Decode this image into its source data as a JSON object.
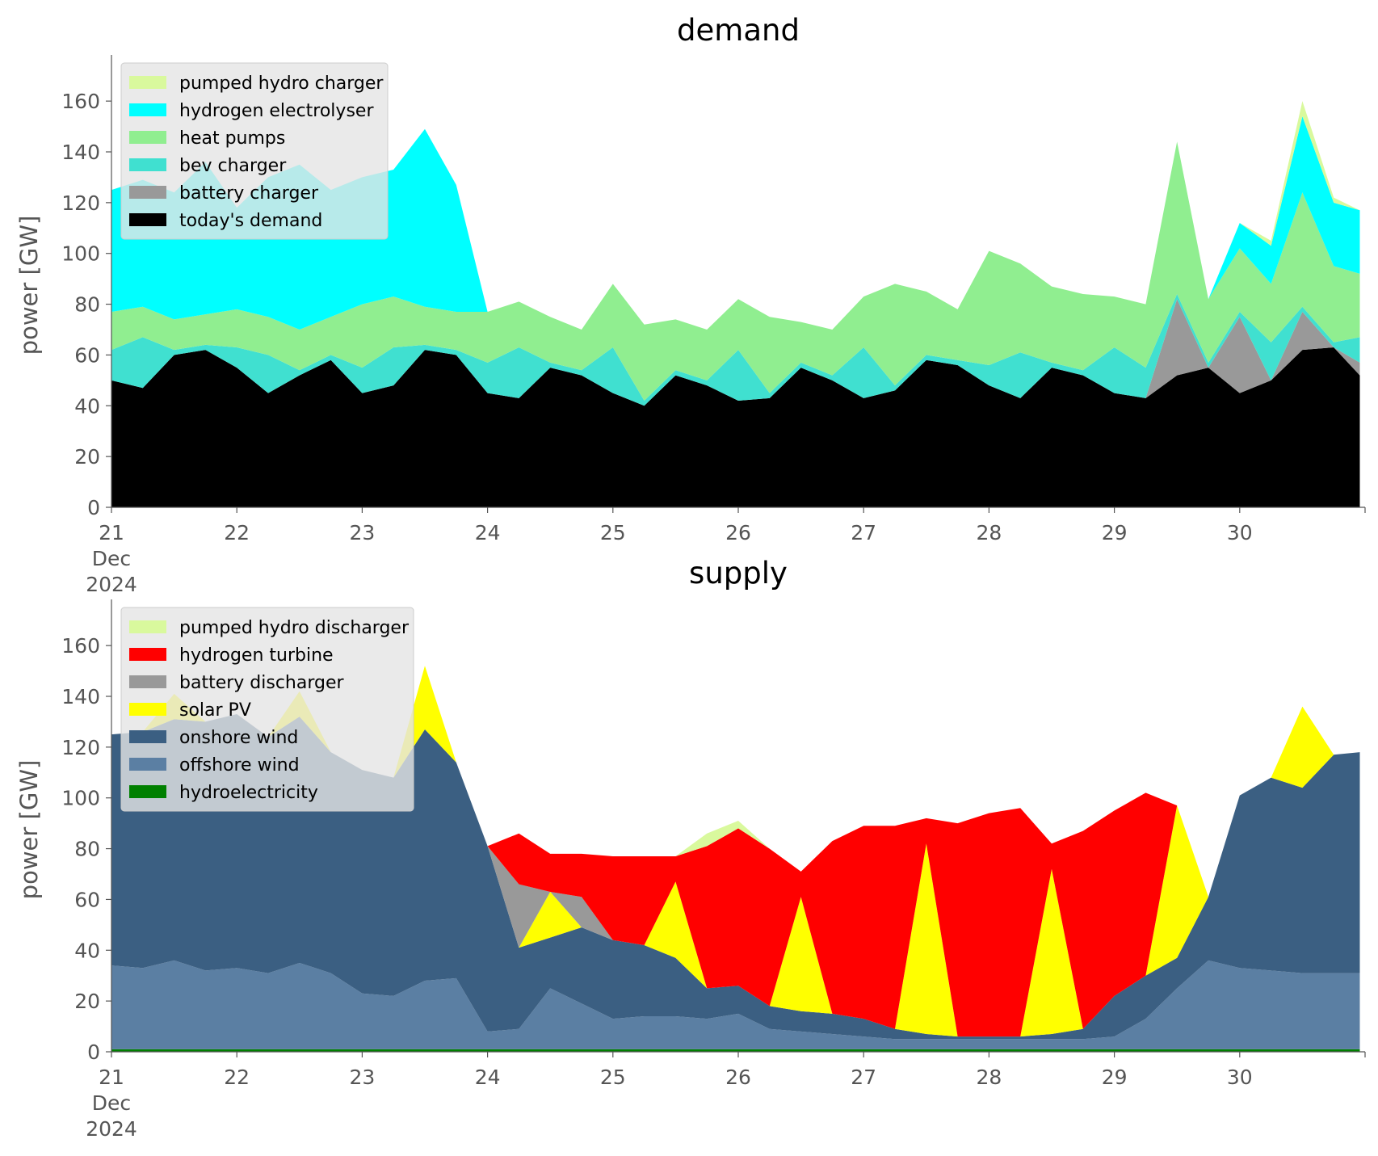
{
  "chart_data": [
    {
      "type": "area",
      "title": "demand",
      "ylabel": "power [GW]",
      "xlabel": "",
      "ylim": [
        0,
        175
      ],
      "x_tick_labels": [
        "21",
        "22",
        "23",
        "24",
        "25",
        "26",
        "27",
        "28",
        "29",
        "30"
      ],
      "x_first_tick_sublabels": [
        "Dec",
        "2024"
      ],
      "y_tick_labels": [
        "0",
        "20",
        "40",
        "60",
        "80",
        "100",
        "120",
        "140",
        "160"
      ],
      "x": [
        "2024-12-21 00:00",
        "2024-12-21 06:00",
        "2024-12-21 12:00",
        "2024-12-21 18:00",
        "2024-12-22 00:00",
        "2024-12-22 06:00",
        "2024-12-22 12:00",
        "2024-12-22 18:00",
        "2024-12-23 00:00",
        "2024-12-23 06:00",
        "2024-12-23 12:00",
        "2024-12-23 18:00",
        "2024-12-24 00:00",
        "2024-12-24 06:00",
        "2024-12-24 12:00",
        "2024-12-24 18:00",
        "2024-12-25 00:00",
        "2024-12-25 06:00",
        "2024-12-25 12:00",
        "2024-12-25 18:00",
        "2024-12-26 00:00",
        "2024-12-26 06:00",
        "2024-12-26 12:00",
        "2024-12-26 18:00",
        "2024-12-27 00:00",
        "2024-12-27 06:00",
        "2024-12-27 12:00",
        "2024-12-27 18:00",
        "2024-12-28 00:00",
        "2024-12-28 06:00",
        "2024-12-28 12:00",
        "2024-12-28 18:00",
        "2024-12-29 00:00",
        "2024-12-29 06:00",
        "2024-12-29 12:00",
        "2024-12-29 18:00",
        "2024-12-30 00:00",
        "2024-12-30 06:00",
        "2024-12-30 12:00",
        "2024-12-30 18:00",
        "2024-12-30 23:00"
      ],
      "legend_position": "upper-left",
      "series": [
        {
          "name": "today's demand",
          "color": "#000000",
          "values": [
            50,
            47,
            60,
            62,
            55,
            45,
            52,
            58,
            45,
            48,
            62,
            60,
            45,
            43,
            55,
            52,
            45,
            40,
            52,
            48,
            42,
            43,
            55,
            50,
            43,
            46,
            58,
            56,
            48,
            43,
            55,
            52,
            45,
            43,
            52,
            55,
            45,
            50,
            62,
            63,
            52
          ]
        },
        {
          "name": "battery charger",
          "color": "#999999",
          "values": [
            0,
            0,
            0,
            0,
            0,
            0,
            0,
            0,
            0,
            0,
            0,
            0,
            0,
            0,
            0,
            0,
            0,
            0,
            0,
            0,
            0,
            0,
            0,
            0,
            0,
            0,
            0,
            0,
            0,
            0,
            0,
            0,
            0,
            0,
            30,
            0,
            30,
            0,
            15,
            0,
            5
          ]
        },
        {
          "name": "bev charger",
          "color": "#40e0d0",
          "values": [
            12,
            20,
            2,
            2,
            8,
            15,
            2,
            2,
            10,
            15,
            2,
            2,
            12,
            20,
            2,
            2,
            18,
            2,
            2,
            2,
            20,
            2,
            2,
            2,
            20,
            2,
            2,
            2,
            8,
            18,
            2,
            2,
            18,
            12,
            2,
            2,
            2,
            15,
            2,
            2,
            10
          ]
        },
        {
          "name": "heat pumps",
          "color": "#90ee90",
          "values": [
            15,
            12,
            12,
            12,
            15,
            15,
            16,
            15,
            25,
            20,
            15,
            15,
            20,
            18,
            18,
            16,
            25,
            30,
            20,
            20,
            20,
            30,
            16,
            18,
            20,
            40,
            25,
            20,
            45,
            35,
            30,
            30,
            20,
            25,
            60,
            25,
            25,
            23,
            45,
            30,
            25
          ]
        },
        {
          "name": "hydrogen electrolyser",
          "color": "#00ffff",
          "values": [
            48,
            50,
            50,
            60,
            40,
            55,
            65,
            50,
            50,
            50,
            70,
            50,
            0,
            0,
            0,
            0,
            0,
            0,
            0,
            0,
            0,
            0,
            0,
            0,
            0,
            0,
            0,
            0,
            0,
            0,
            0,
            0,
            0,
            0,
            0,
            0,
            10,
            15,
            30,
            25,
            25
          ]
        },
        {
          "name": "pumped hydro charger",
          "color": "#d9f99d",
          "values": [
            0,
            0,
            0,
            0,
            0,
            0,
            0,
            0,
            0,
            0,
            0,
            0,
            0,
            0,
            0,
            0,
            0,
            0,
            0,
            0,
            0,
            0,
            0,
            0,
            0,
            0,
            0,
            0,
            0,
            0,
            0,
            0,
            0,
            0,
            0,
            0,
            0,
            2,
            6,
            2,
            0
          ]
        }
      ]
    },
    {
      "type": "area",
      "title": "supply",
      "ylabel": "power [GW]",
      "xlabel": "",
      "ylim": [
        0,
        175
      ],
      "x_tick_labels": [
        "21",
        "22",
        "23",
        "24",
        "25",
        "26",
        "27",
        "28",
        "29",
        "30"
      ],
      "x_first_tick_sublabels": [
        "Dec",
        "2024"
      ],
      "y_tick_labels": [
        "0",
        "20",
        "40",
        "60",
        "80",
        "100",
        "120",
        "140",
        "160"
      ],
      "x": [
        "2024-12-21 00:00",
        "2024-12-21 06:00",
        "2024-12-21 12:00",
        "2024-12-21 18:00",
        "2024-12-22 00:00",
        "2024-12-22 06:00",
        "2024-12-22 12:00",
        "2024-12-22 18:00",
        "2024-12-23 00:00",
        "2024-12-23 06:00",
        "2024-12-23 12:00",
        "2024-12-23 18:00",
        "2024-12-24 00:00",
        "2024-12-24 06:00",
        "2024-12-24 12:00",
        "2024-12-24 18:00",
        "2024-12-25 00:00",
        "2024-12-25 06:00",
        "2024-12-25 12:00",
        "2024-12-25 18:00",
        "2024-12-26 00:00",
        "2024-12-26 06:00",
        "2024-12-26 12:00",
        "2024-12-26 18:00",
        "2024-12-27 00:00",
        "2024-12-27 06:00",
        "2024-12-27 12:00",
        "2024-12-27 18:00",
        "2024-12-28 00:00",
        "2024-12-28 06:00",
        "2024-12-28 12:00",
        "2024-12-28 18:00",
        "2024-12-29 00:00",
        "2024-12-29 06:00",
        "2024-12-29 12:00",
        "2024-12-29 18:00",
        "2024-12-30 00:00",
        "2024-12-30 06:00",
        "2024-12-30 12:00",
        "2024-12-30 18:00",
        "2024-12-30 23:00"
      ],
      "legend_position": "upper-left",
      "series": [
        {
          "name": "hydroelectricity",
          "color": "#008000",
          "values": [
            1,
            1,
            1,
            1,
            1,
            1,
            1,
            1,
            1,
            1,
            1,
            1,
            1,
            1,
            1,
            1,
            1,
            1,
            1,
            1,
            1,
            1,
            1,
            1,
            1,
            1,
            1,
            1,
            1,
            1,
            1,
            1,
            1,
            1,
            1,
            1,
            1,
            1,
            1,
            1,
            1
          ]
        },
        {
          "name": "offshore wind",
          "color": "#5b7fa3",
          "values": [
            33,
            32,
            35,
            31,
            32,
            30,
            34,
            30,
            22,
            21,
            27,
            28,
            7,
            8,
            24,
            18,
            12,
            13,
            13,
            12,
            14,
            8,
            7,
            6,
            5,
            4,
            4,
            4,
            4,
            4,
            4,
            4,
            5,
            12,
            24,
            35,
            32,
            31,
            30,
            30,
            30
          ]
        },
        {
          "name": "onshore wind",
          "color": "#3b5f82",
          "values": [
            91,
            93,
            95,
            98,
            100,
            93,
            97,
            87,
            88,
            86,
            99,
            85,
            73,
            32,
            20,
            30,
            31,
            28,
            23,
            12,
            11,
            9,
            8,
            8,
            7,
            4,
            2,
            1,
            1,
            1,
            2,
            4,
            16,
            17,
            12,
            25,
            68,
            76,
            73,
            86,
            87
          ]
        },
        {
          "name": "solar PV",
          "color": "#ffff00",
          "values": [
            0,
            0,
            10,
            0,
            0,
            0,
            10,
            0,
            0,
            0,
            25,
            0,
            0,
            0,
            18,
            0,
            0,
            0,
            30,
            0,
            0,
            0,
            45,
            0,
            0,
            0,
            75,
            0,
            0,
            0,
            65,
            0,
            0,
            0,
            60,
            0,
            0,
            0,
            32,
            0,
            0
          ]
        },
        {
          "name": "battery discharger",
          "color": "#999999",
          "values": [
            0,
            0,
            0,
            0,
            0,
            0,
            0,
            0,
            0,
            0,
            0,
            0,
            0,
            25,
            0,
            12,
            0,
            0,
            0,
            0,
            0,
            0,
            0,
            0,
            0,
            0,
            0,
            0,
            0,
            0,
            0,
            0,
            0,
            0,
            0,
            0,
            0,
            0,
            0,
            0,
            0
          ]
        },
        {
          "name": "hydrogen turbine",
          "color": "#ff0000",
          "values": [
            0,
            0,
            0,
            0,
            0,
            0,
            0,
            0,
            0,
            0,
            0,
            0,
            0,
            20,
            15,
            17,
            33,
            35,
            10,
            56,
            62,
            62,
            10,
            68,
            76,
            80,
            10,
            84,
            88,
            90,
            10,
            78,
            73,
            72,
            0,
            0,
            0,
            0,
            0,
            0,
            0
          ]
        },
        {
          "name": "pumped hydro discharger",
          "color": "#d9f99d",
          "values": [
            0,
            0,
            0,
            0,
            0,
            0,
            0,
            0,
            0,
            0,
            0,
            0,
            0,
            0,
            0,
            0,
            0,
            0,
            0,
            5,
            3,
            0,
            0,
            0,
            0,
            0,
            0,
            0,
            0,
            0,
            0,
            0,
            0,
            0,
            0,
            0,
            0,
            0,
            0,
            0,
            0
          ]
        }
      ]
    }
  ]
}
